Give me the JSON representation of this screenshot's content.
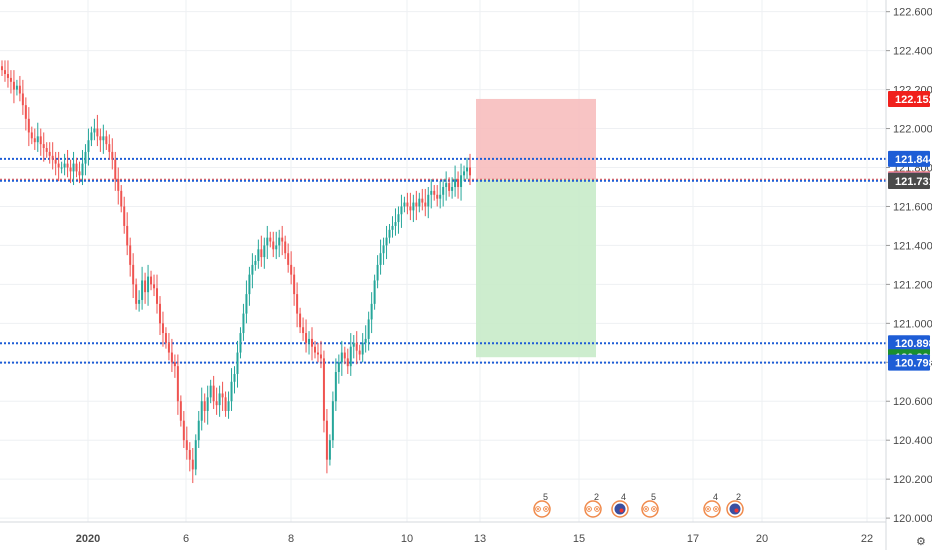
{
  "chart_data": {
    "type": "candlestick",
    "ylim": [
      119.98,
      122.66
    ],
    "grid": true,
    "y_ticks": [
      {
        "value": 122.6,
        "label": "122.600"
      },
      {
        "value": 122.4,
        "label": "122.400"
      },
      {
        "value": 122.2,
        "label": "122.200"
      },
      {
        "value": 122.0,
        "label": "122.000"
      },
      {
        "value": 121.8,
        "label": "121.800"
      },
      {
        "value": 121.6,
        "label": "121.600"
      },
      {
        "value": 121.4,
        "label": "121.400"
      },
      {
        "value": 121.2,
        "label": "121.200"
      },
      {
        "value": 121.0,
        "label": "121.000"
      },
      {
        "value": 120.8,
        "label": "120.800"
      },
      {
        "value": 120.6,
        "label": "120.600"
      },
      {
        "value": 120.4,
        "label": "120.400"
      },
      {
        "value": 120.2,
        "label": "120.200"
      },
      {
        "value": 120.0,
        "label": "120.000"
      }
    ],
    "x_ticks": [
      "2020",
      "6",
      "8",
      "10",
      "13",
      "15",
      "17",
      "20",
      "22"
    ],
    "horizontal_levels": [
      {
        "value": 121.844,
        "label": "121.844",
        "color": "#1e5dd6",
        "style": "dotted"
      },
      {
        "value": 120.898,
        "label": "120.898",
        "color": "#1e5dd6",
        "style": "dotted"
      },
      {
        "value": 120.798,
        "label": "120.798",
        "color": "#1e5dd6",
        "style": "dotted"
      },
      {
        "value": 121.732,
        "label": "121.732",
        "color": "#1e5dd6",
        "style": "dotted"
      }
    ],
    "price_tags": [
      {
        "value": 122.152,
        "label": "122.152",
        "color": "#f0201c"
      },
      {
        "value": 121.844,
        "label": "121.844",
        "color": "#1e5dd6"
      },
      {
        "value": 121.74,
        "label": "121.740",
        "color": "#f47c7c"
      },
      {
        "value": 121.732,
        "label": "121.732",
        "color": "#1e5dd6"
      },
      {
        "value": 121.731,
        "label": "121.731",
        "color": "#4a4a4a"
      },
      {
        "value": 120.898,
        "label": "120.898",
        "color": "#1e5dd6"
      },
      {
        "value": 120.826,
        "label": "120.826",
        "color": "#1a8f2e"
      },
      {
        "value": 120.798,
        "label": "120.798",
        "color": "#1e5dd6"
      }
    ],
    "position": {
      "direction": "short",
      "entry": 121.74,
      "stop": 122.152,
      "target": 120.826,
      "stop_color": "#f7baba",
      "target_color": "#c8ebc9"
    },
    "candle_colors": {
      "up": "#26a69a",
      "down": "#ef5350"
    },
    "events": [
      {
        "count": "5",
        "flag": false
      },
      {
        "count": "2",
        "flag": false
      },
      {
        "count": "4",
        "flag": true
      },
      {
        "count": "5",
        "flag": false
      },
      {
        "count": "4",
        "flag": false
      },
      {
        "count": "2",
        "flag": true
      }
    ],
    "candles_close": [
      122.3,
      122.28,
      122.26,
      122.24,
      122.2,
      122.22,
      122.18,
      122.12,
      122.05,
      121.98,
      121.95,
      121.93,
      121.96,
      121.92,
      121.9,
      121.88,
      121.86,
      121.84,
      121.82,
      121.8,
      121.8,
      121.82,
      121.8,
      121.78,
      121.82,
      121.78,
      121.76,
      121.82,
      121.88,
      121.94,
      121.98,
      122.0,
      121.96,
      121.94,
      121.96,
      121.92,
      121.88,
      121.84,
      121.74,
      121.68,
      121.6,
      121.5,
      121.4,
      121.3,
      121.2,
      121.1,
      121.12,
      121.22,
      121.16,
      121.24,
      121.2,
      121.18,
      121.1,
      121.0,
      120.95,
      120.9,
      120.85,
      120.8,
      120.78,
      120.6,
      120.5,
      120.4,
      120.35,
      120.3,
      120.25,
      120.4,
      120.5,
      120.6,
      120.55,
      120.62,
      120.68,
      120.6,
      120.58,
      120.64,
      120.62,
      120.55,
      120.6,
      120.7,
      120.74,
      120.85,
      120.95,
      121.05,
      121.15,
      121.25,
      121.3,
      121.32,
      121.38,
      121.34,
      121.4,
      121.44,
      121.42,
      121.38,
      121.4,
      121.44,
      121.42,
      121.36,
      121.3,
      121.25,
      121.15,
      121.05,
      120.98,
      120.95,
      120.9,
      120.92,
      120.88,
      120.85,
      120.84,
      120.82,
      120.5,
      120.3,
      120.4,
      120.6,
      120.75,
      120.8,
      120.85,
      120.82,
      120.78,
      120.88,
      120.9,
      120.86,
      120.84,
      120.9,
      120.92,
      121.02,
      121.1,
      121.22,
      121.3,
      121.36,
      121.4,
      121.44,
      121.48,
      121.5,
      121.52,
      121.56,
      121.6,
      121.62,
      121.6,
      121.58,
      121.62,
      121.6,
      121.64,
      121.62,
      121.6,
      121.66,
      121.68,
      121.66,
      121.64,
      121.66,
      121.7,
      121.72,
      121.68,
      121.7,
      121.74,
      121.7,
      121.76,
      121.78,
      121.8,
      121.76
    ]
  },
  "axis_controls": {
    "settings_label": "⚙"
  }
}
